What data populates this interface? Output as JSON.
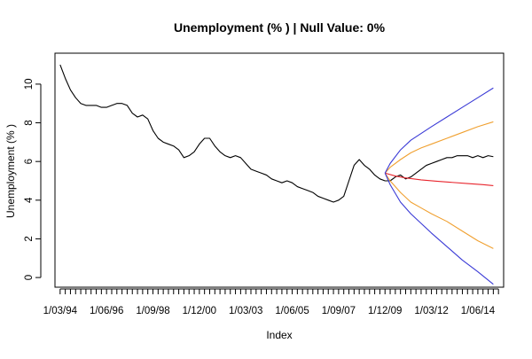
{
  "chart_data": {
    "type": "line",
    "title": "Unemployment (% ) | Null Value: 0%",
    "xlabel": "Index",
    "ylabel": "Unemployment (% )",
    "ylim": [
      -0.5,
      11.6
    ],
    "y_ticks": [
      0,
      2,
      4,
      6,
      8,
      10
    ],
    "x_tick_labels": [
      "1/03/94",
      "1/06/96",
      "1/09/98",
      "1/12/00",
      "1/03/03",
      "1/06/05",
      "1/09/07",
      "1/12/09",
      "1/03/12",
      "1/06/14"
    ],
    "x_tick_index": [
      0,
      9,
      18,
      27,
      36,
      45,
      54,
      63,
      72,
      81
    ],
    "x_range": [
      -1,
      86
    ],
    "minor_tick_count": 86,
    "grid": false,
    "legend": "none",
    "series": [
      {
        "key": "actual",
        "color": "#000000",
        "x": [
          0,
          1,
          2,
          3,
          4,
          5,
          6,
          7,
          8,
          9,
          10,
          11,
          12,
          13,
          14,
          15,
          16,
          17,
          18,
          19,
          20,
          21,
          22,
          23,
          24,
          25,
          26,
          27,
          28,
          29,
          30,
          31,
          32,
          33,
          34,
          35,
          36,
          37,
          38,
          39,
          40,
          41,
          42,
          43,
          44,
          45,
          46,
          47,
          48,
          49,
          50,
          51,
          52,
          53,
          54,
          55,
          56,
          57,
          58,
          59,
          60,
          61,
          62,
          63,
          64,
          65,
          66,
          67,
          68,
          69,
          70,
          71,
          72,
          73,
          74,
          75,
          76,
          77,
          78,
          79,
          80,
          81,
          82,
          83,
          84
        ],
        "y": [
          11.0,
          10.3,
          9.7,
          9.3,
          9.0,
          8.9,
          8.9,
          8.9,
          8.8,
          8.8,
          8.9,
          9.0,
          9.0,
          8.9,
          8.5,
          8.3,
          8.4,
          8.2,
          7.6,
          7.2,
          7.0,
          6.9,
          6.8,
          6.6,
          6.2,
          6.3,
          6.5,
          6.9,
          7.2,
          7.2,
          6.8,
          6.5,
          6.3,
          6.2,
          6.3,
          6.2,
          5.9,
          5.6,
          5.5,
          5.4,
          5.3,
          5.1,
          5.0,
          4.9,
          5.0,
          4.9,
          4.7,
          4.6,
          4.5,
          4.4,
          4.2,
          4.1,
          4.0,
          3.9,
          4.0,
          4.2,
          5.0,
          5.8,
          6.1,
          5.8,
          5.6,
          5.3,
          5.1,
          5.0,
          5.0,
          5.2,
          5.3,
          5.1,
          5.2,
          5.4,
          5.6,
          5.8,
          5.9,
          6.0,
          6.1,
          6.2,
          6.2,
          6.3,
          6.3,
          6.3,
          6.2,
          6.3,
          6.2,
          6.3,
          6.25
        ]
      },
      {
        "key": "forecast-mean",
        "color": "#e8242c",
        "x": [
          63,
          65,
          67,
          70,
          73,
          76,
          79,
          82,
          84
        ],
        "y": [
          5.4,
          5.25,
          5.15,
          5.05,
          4.98,
          4.92,
          4.86,
          4.8,
          4.75
        ]
      },
      {
        "key": "upper-80",
        "color": "#f0a030",
        "x": [
          63,
          64,
          66,
          68,
          70,
          72,
          75,
          78,
          81,
          84
        ],
        "y": [
          5.4,
          5.7,
          6.1,
          6.45,
          6.7,
          6.9,
          7.2,
          7.5,
          7.8,
          8.05
        ]
      },
      {
        "key": "lower-80",
        "color": "#f0a030",
        "x": [
          63,
          64,
          66,
          68,
          70,
          72,
          75,
          78,
          81,
          84
        ],
        "y": [
          5.4,
          5.0,
          4.4,
          3.9,
          3.6,
          3.3,
          2.9,
          2.4,
          1.9,
          1.5
        ]
      },
      {
        "key": "upper-95",
        "color": "#3a3ad6",
        "x": [
          63,
          64,
          66,
          68,
          70,
          72,
          75,
          78,
          81,
          84
        ],
        "y": [
          5.4,
          5.9,
          6.6,
          7.1,
          7.45,
          7.8,
          8.3,
          8.8,
          9.3,
          9.8
        ]
      },
      {
        "key": "lower-95",
        "color": "#3a3ad6",
        "x": [
          63,
          64,
          66,
          68,
          70,
          72,
          75,
          78,
          81,
          84
        ],
        "y": [
          5.4,
          4.8,
          3.9,
          3.3,
          2.8,
          2.3,
          1.6,
          0.9,
          0.3,
          -0.35
        ]
      }
    ]
  }
}
